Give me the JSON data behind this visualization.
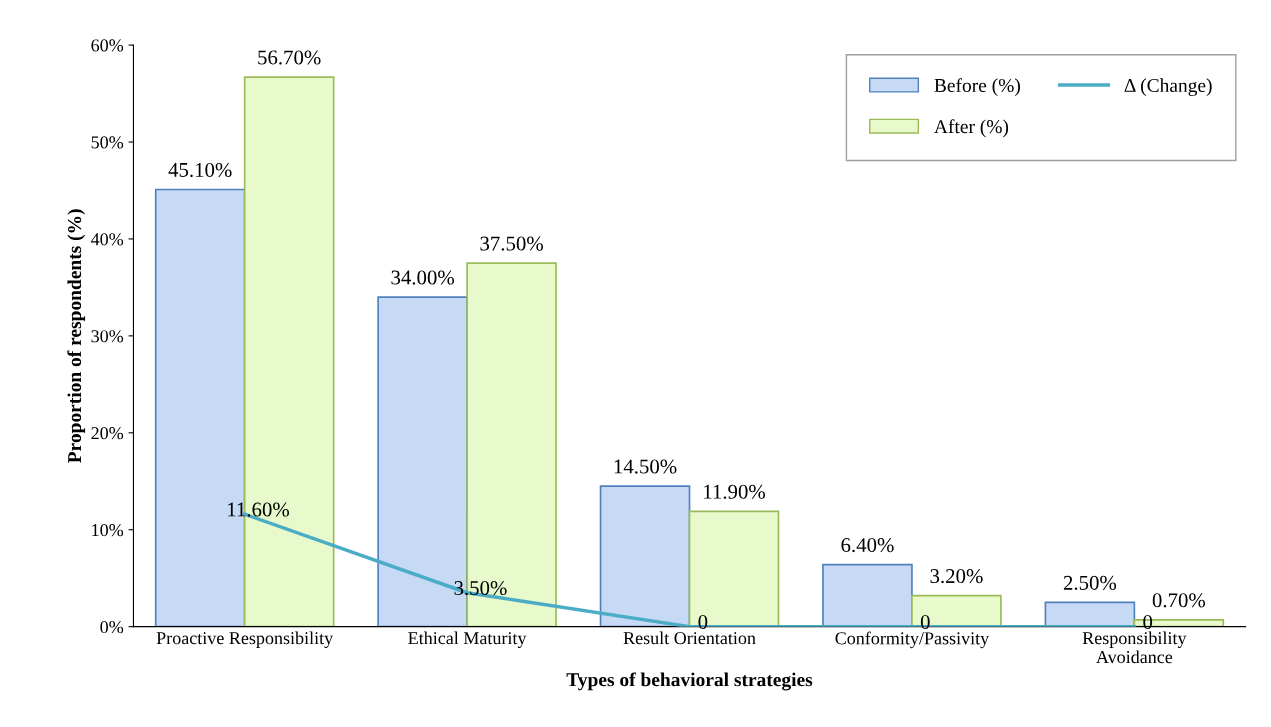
{
  "chart_data": {
    "type": "bar",
    "xlabel": "Types of behavioral strategies",
    "ylabel": "Proportion of respondents (%)",
    "categories": [
      "Proactive Responsibility",
      "Ethical Maturity",
      "Result Orientation",
      "Conformity/Passivity",
      "Responsibility\nAvoidance"
    ],
    "series": [
      {
        "name": "Before (%)",
        "color": "#c6d9f5",
        "values": [
          45.1,
          34.0,
          14.5,
          6.4,
          2.5
        ],
        "value_labels": [
          "45.10%",
          "34.00%",
          "14.50%",
          "6.40%",
          "2.50%"
        ]
      },
      {
        "name": "After (%)",
        "color": "#e8f9cc",
        "values": [
          56.7,
          37.5,
          11.9,
          3.2,
          0.7
        ],
        "value_labels": [
          "56.70%",
          "37.50%",
          "11.90%",
          "3.20%",
          "0.70%"
        ]
      },
      {
        "name": "Δ (Change)",
        "type": "line",
        "color": "#4bacc6",
        "values": [
          11.6,
          3.5,
          0,
          0,
          0
        ],
        "value_labels": [
          "11.60%",
          "3.50%",
          "0",
          "0",
          "0"
        ]
      }
    ],
    "ylim": [
      0,
      60
    ],
    "yticks": [
      {
        "value": 0,
        "label": "0%"
      },
      {
        "value": 10,
        "label": "10%"
      },
      {
        "value": 20,
        "label": "20%"
      },
      {
        "value": 30,
        "label": "30%"
      },
      {
        "value": 40,
        "label": "40%"
      },
      {
        "value": 50,
        "label": "50%"
      },
      {
        "value": 60,
        "label": "60%"
      }
    ],
    "legend": "top right"
  }
}
